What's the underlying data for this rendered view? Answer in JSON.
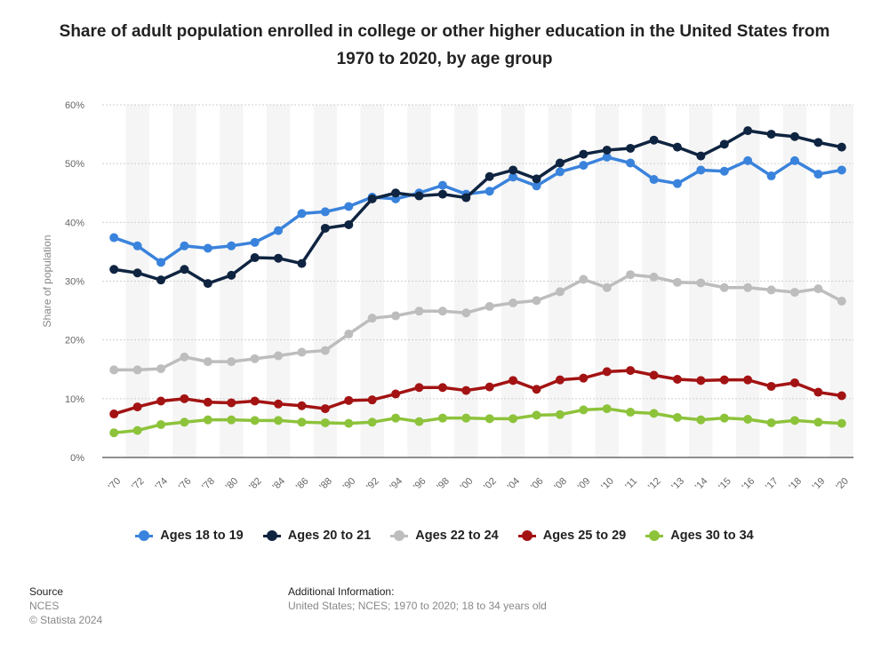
{
  "chart_data": {
    "type": "line",
    "title": "Share of adult population enrolled in college or other higher education in the United States from 1970 to 2020, by age group",
    "xlabel": "",
    "ylabel": "Share of population",
    "categories": [
      "'70",
      "'72",
      "'74",
      "'76",
      "'78",
      "'80",
      "'82",
      "'84",
      "'86",
      "'88",
      "'90",
      "'92",
      "'94",
      "'96",
      "'98",
      "'00",
      "'02",
      "'04",
      "'06",
      "'08",
      "'09",
      "'10",
      "'11",
      "'12",
      "'13",
      "'14",
      "'15",
      "'16",
      "'17",
      "'18",
      "'19",
      "'20"
    ],
    "yticks": [
      "0%",
      "10%",
      "20%",
      "30%",
      "40%",
      "50%",
      "60%"
    ],
    "ylim": [
      0,
      60
    ],
    "grid": true,
    "legend_position": "bottom",
    "series": [
      {
        "name": "Ages 18 to 19",
        "color": "#3a83dc",
        "values": [
          37.4,
          36,
          33.2,
          36,
          35.6,
          36,
          36.6,
          38.6,
          41.5,
          41.8,
          42.7,
          44.3,
          44,
          45,
          46.3,
          44.8,
          45.3,
          47.7,
          46.2,
          48.6,
          49.7,
          51.1,
          50.1,
          47.3,
          46.6,
          48.9,
          48.7,
          50.5,
          47.9,
          50.5,
          48.2,
          48.9
        ]
      },
      {
        "name": "Ages 20 to 21",
        "color": "#0f2440",
        "values": [
          32,
          31.4,
          30.2,
          32,
          29.6,
          31,
          34,
          33.9,
          33,
          39,
          39.6,
          44,
          45,
          44.5,
          44.8,
          44.2,
          47.8,
          48.9,
          47.4,
          50.1,
          51.6,
          52.3,
          52.6,
          54,
          52.8,
          51.3,
          53.3,
          55.6,
          55,
          54.6,
          53.6,
          52.8
        ]
      },
      {
        "name": "Ages 22 to 24",
        "color": "#bdbdbd",
        "values": [
          14.9,
          14.9,
          15.1,
          17.1,
          16.3,
          16.3,
          16.8,
          17.3,
          17.9,
          18.2,
          21,
          23.7,
          24.1,
          24.9,
          24.9,
          24.6,
          25.7,
          26.3,
          26.7,
          28.2,
          30.3,
          28.9,
          31.1,
          30.7,
          29.8,
          29.7,
          28.9,
          28.9,
          28.5,
          28.1,
          28.7,
          26.6
        ]
      },
      {
        "name": "Ages 25 to 29",
        "color": "#a31313",
        "values": [
          7.4,
          8.6,
          9.6,
          10,
          9.4,
          9.3,
          9.6,
          9.1,
          8.8,
          8.3,
          9.7,
          9.8,
          10.8,
          11.9,
          11.9,
          11.4,
          12,
          13.1,
          11.6,
          13.2,
          13.5,
          14.6,
          14.8,
          14,
          13.3,
          13.1,
          13.2,
          13.2,
          12.1,
          12.7,
          11.1,
          10.5
        ]
      },
      {
        "name": "Ages 30 to 34",
        "color": "#8dc33b",
        "values": [
          4.2,
          4.6,
          5.6,
          6,
          6.4,
          6.4,
          6.3,
          6.3,
          6,
          5.9,
          5.8,
          6,
          6.7,
          6.1,
          6.7,
          6.7,
          6.6,
          6.6,
          7.2,
          7.3,
          8.1,
          8.3,
          7.7,
          7.5,
          6.8,
          6.4,
          6.7,
          6.5,
          5.9,
          6.3,
          6,
          5.8
        ]
      }
    ]
  },
  "footer": {
    "source_label": "Source",
    "source_name": "NCES",
    "copyright": "© Statista 2024",
    "info_label": "Additional Information:",
    "info_text": "United States; NCES; 1970 to 2020; 18 to 34 years old"
  }
}
